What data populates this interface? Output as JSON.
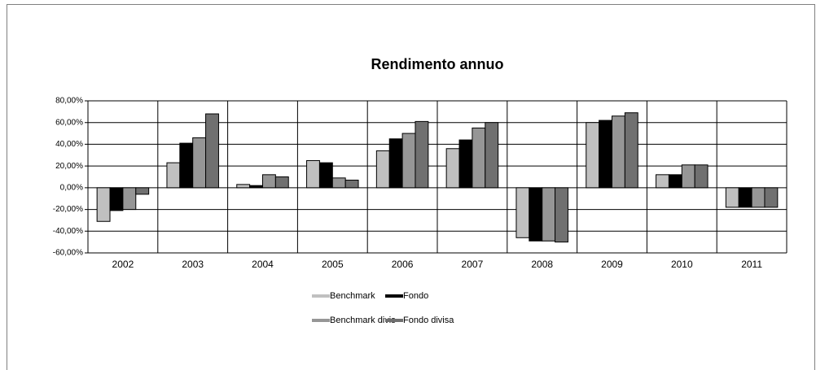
{
  "chart_data": {
    "type": "bar",
    "title": "Rendimento annuo",
    "categories": [
      "2002",
      "2003",
      "2004",
      "2005",
      "2006",
      "2007",
      "2008",
      "2009",
      "2010",
      "2011"
    ],
    "series": [
      {
        "name": "Benchmark",
        "color": "#c0c0c0",
        "values": [
          -31,
          23,
          3,
          25,
          34,
          36,
          -46,
          60,
          12,
          -18
        ]
      },
      {
        "name": "Fondo",
        "color": "#000000",
        "values": [
          -21,
          41,
          2,
          23,
          45,
          44,
          -49,
          62,
          12,
          -18
        ]
      },
      {
        "name": "Benchmark divis",
        "color": "#969696",
        "values": [
          -20,
          46,
          12,
          9,
          50,
          55,
          -49,
          66,
          21,
          -18
        ]
      },
      {
        "name": "Fondo divisa",
        "color": "#707070",
        "values": [
          -6,
          68,
          10,
          7,
          61,
          60,
          -50,
          69,
          21,
          -18
        ]
      }
    ],
    "ylim": [
      -60,
      80
    ],
    "yticks": [
      {
        "value": -60,
        "label": "-60,00%"
      },
      {
        "value": -40,
        "label": "-40,00%"
      },
      {
        "value": -20,
        "label": "-20,00%"
      },
      {
        "value": 0,
        "label": "0,00%"
      },
      {
        "value": 20,
        "label": "20,00%"
      },
      {
        "value": 40,
        "label": "40,00%"
      },
      {
        "value": 60,
        "label": "60,00%"
      },
      {
        "value": 80,
        "label": "80,00%"
      }
    ],
    "grid": true
  }
}
